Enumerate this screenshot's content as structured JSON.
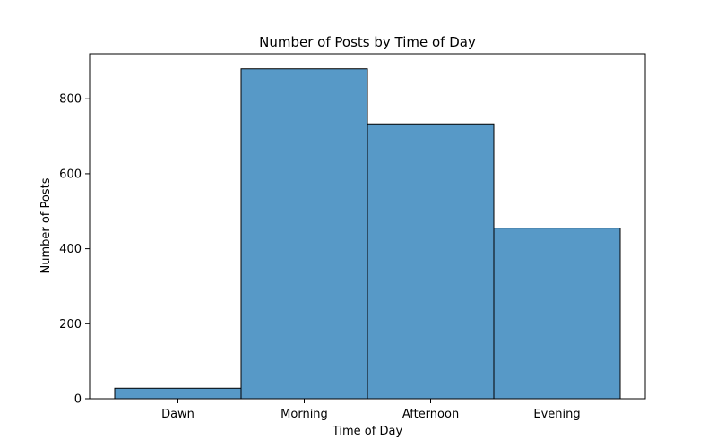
{
  "chart_data": {
    "type": "bar",
    "title": "Number of Posts by Time of Day",
    "xlabel": "Time of Day",
    "ylabel": "Number of Posts",
    "categories": [
      "Dawn",
      "Morning",
      "Afternoon",
      "Evening"
    ],
    "values": [
      28,
      880,
      733,
      455
    ],
    "ylim": [
      0,
      920
    ],
    "yticks": [
      0,
      200,
      400,
      600,
      800
    ],
    "grid": false,
    "legend": "none",
    "bar_color": "#5799c7",
    "edge_color": "#000000"
  }
}
